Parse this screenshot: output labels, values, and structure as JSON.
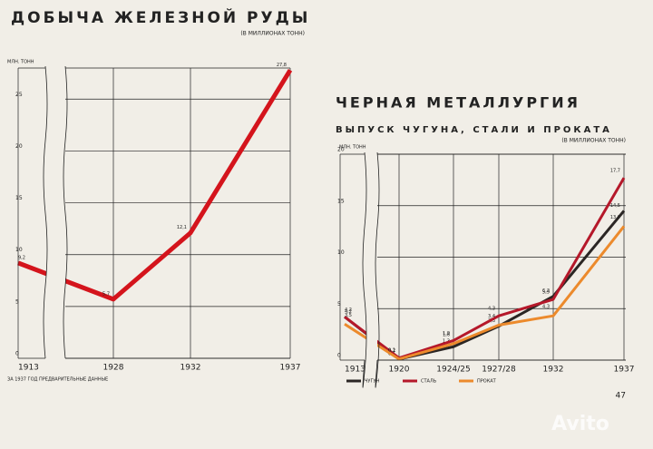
{
  "chart_data": [
    {
      "type": "line",
      "title": "ДОБЫЧА ЖЕЛЕЗНОЙ РУДЫ",
      "subtitle": "(В МИЛЛИОНАХ ТОНН)",
      "y_label": "МЛН. ТОНН",
      "note": "ЗА 1937 ГОД ПРЕДВАРИТЕЛЬНЫЕ ДАННЫЕ",
      "categories": [
        "1913",
        "1928",
        "1932",
        "1937"
      ],
      "series": [
        {
          "name": null,
          "color": "#d4141c",
          "values": [
            9.2,
            5.7,
            12.1,
            27.8
          ],
          "value_labels": [
            "9,2",
            "5,7",
            "12,1",
            "27,8"
          ]
        }
      ],
      "ylim": [
        0,
        28
      ],
      "yticks": [
        0,
        5,
        10,
        15,
        20,
        25
      ],
      "grid": true
    },
    {
      "type": "line",
      "title": "ЧЕРНАЯ МЕТАЛЛУРГИЯ",
      "subtitle": "ВЫПУСК ЧУГУНА, СТАЛИ И ПРОКАТА",
      "unit_note": "(В МИЛЛИОНАХ ТОНН)",
      "y_label": "МЛН. ТОНН",
      "categories": [
        "1913",
        "1920",
        "1924/25",
        "1927/28",
        "1932",
        "1937"
      ],
      "series": [
        {
          "name": "ЧУГУН",
          "color": "#2b2624",
          "values": [
            4.2,
            0.1,
            1.3,
            3.3,
            6.2,
            14.5
          ],
          "value_labels": [
            "4,2",
            "0,1",
            "1,3",
            "3,3",
            "6,2",
            "14,5"
          ]
        },
        {
          "name": "СТАЛЬ",
          "color": "#b5182a",
          "values": [
            4.2,
            0.2,
            1.9,
            4.3,
            5.9,
            17.7
          ],
          "value_labels": [
            "4,2",
            "0,2",
            "1,9",
            "4,3",
            "5,9",
            "17,7"
          ]
        },
        {
          "name": "ПРОКАТ",
          "color": "#ec8a2c",
          "values": [
            3.5,
            0.1,
            1.6,
            3.4,
            4.3,
            13.0
          ],
          "value_labels": [
            "3,5",
            "0,1",
            "1,6",
            "3,4",
            "4,3",
            "13,0"
          ]
        }
      ],
      "ylim": [
        0,
        20
      ],
      "yticks": [
        0,
        5,
        10,
        15,
        20
      ],
      "grid": true
    }
  ],
  "page_number": "47",
  "watermark": "Avito"
}
